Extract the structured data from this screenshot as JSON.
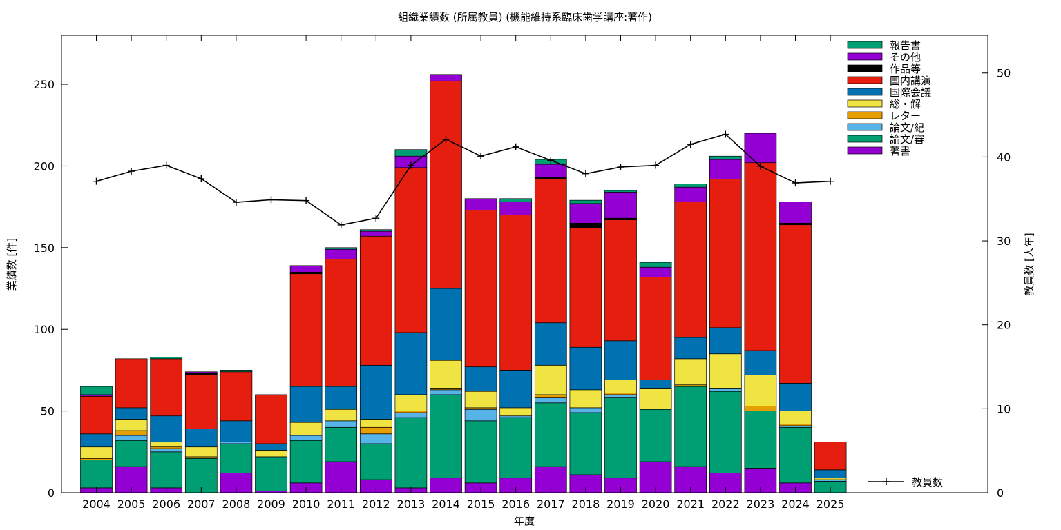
{
  "chart_data": {
    "type": "bar",
    "stacked": true,
    "title": "組織業績数 (所属教員) (機能維持系臨床歯学講座:著作)",
    "xlabel": "年度",
    "ylabel": "業績数 [件]",
    "y2label": "教員数 [人年]",
    "ylim": [
      0,
      280
    ],
    "y2lim": [
      0,
      54.5
    ],
    "yticks": [
      0,
      50,
      100,
      150,
      200,
      250
    ],
    "y2ticks": [
      0,
      10,
      20,
      30,
      40,
      50
    ],
    "grid": false,
    "legend_position": "top-right",
    "categories": [
      "2004",
      "2005",
      "2006",
      "2007",
      "2008",
      "2009",
      "2010",
      "2011",
      "2012",
      "2013",
      "2014",
      "2015",
      "2016",
      "2017",
      "2018",
      "2019",
      "2020",
      "2021",
      "2022",
      "2023",
      "2024",
      "2025"
    ],
    "series": [
      {
        "name": "著書",
        "color": "#9400d3",
        "values": [
          3,
          16,
          3,
          0,
          12,
          1,
          6,
          19,
          8,
          3,
          9,
          6,
          9,
          16,
          11,
          9,
          19,
          16,
          12,
          15,
          6,
          0
        ]
      },
      {
        "name": "論文/審",
        "color": "#009e73",
        "values": [
          17,
          16,
          22,
          21,
          18,
          21,
          26,
          21,
          22,
          43,
          51,
          38,
          37,
          39,
          38,
          49,
          32,
          49,
          50,
          35,
          34,
          7
        ]
      },
      {
        "name": "論文/紀",
        "color": "#56b4e9",
        "values": [
          0,
          3,
          2,
          0,
          1,
          0,
          3,
          4,
          6,
          3,
          3,
          7,
          1,
          3,
          3,
          2,
          0,
          0,
          2,
          0,
          1,
          1
        ]
      },
      {
        "name": "レター",
        "color": "#e69f00",
        "values": [
          1,
          3,
          1,
          1,
          0,
          0,
          0,
          0,
          4,
          1,
          1,
          1,
          0,
          2,
          0,
          1,
          0,
          1,
          0,
          3,
          1,
          0
        ]
      },
      {
        "name": "総・解",
        "color": "#f0e442",
        "values": [
          7,
          7,
          3,
          6,
          0,
          4,
          8,
          7,
          5,
          10,
          17,
          10,
          5,
          18,
          11,
          8,
          13,
          16,
          21,
          19,
          8,
          1
        ]
      },
      {
        "name": "国際会議",
        "color": "#0072b2",
        "values": [
          8,
          7,
          16,
          11,
          13,
          4,
          22,
          14,
          33,
          38,
          44,
          15,
          23,
          26,
          26,
          24,
          5,
          13,
          16,
          15,
          17,
          5
        ]
      },
      {
        "name": "国内講演",
        "color": "#e51e10",
        "values": [
          23,
          30,
          35,
          33,
          30,
          30,
          69,
          78,
          79,
          101,
          127,
          96,
          95,
          88,
          73,
          74,
          63,
          83,
          91,
          115,
          97,
          17
        ]
      },
      {
        "name": "作品等",
        "color": "#000000",
        "values": [
          0,
          0,
          0,
          1,
          0,
          0,
          1,
          0,
          0,
          0,
          0,
          0,
          0,
          1,
          3,
          1,
          0,
          0,
          0,
          0,
          1,
          0
        ]
      },
      {
        "name": "その他",
        "color": "#9400d3",
        "values": [
          1,
          0,
          0,
          1,
          0,
          0,
          4,
          6,
          3,
          7,
          4,
          7,
          8,
          8,
          12,
          16,
          6,
          9,
          12,
          18,
          13,
          0
        ]
      },
      {
        "name": "報告書",
        "color": "#009e73",
        "values": [
          5,
          0,
          1,
          0,
          1,
          0,
          0,
          1,
          1,
          4,
          0,
          0,
          2,
          3,
          2,
          1,
          3,
          2,
          2,
          0,
          0,
          0
        ]
      }
    ],
    "line_series": {
      "name": "教員数",
      "color": "#000000",
      "axis": "y2",
      "values": [
        37.1,
        38.3,
        39.0,
        37.4,
        34.6,
        34.9,
        34.8,
        31.9,
        32.7,
        39.0,
        42.1,
        40.1,
        41.2,
        39.6,
        38.0,
        38.8,
        39.0,
        41.5,
        42.7,
        38.9,
        36.9,
        37.1
      ]
    }
  }
}
